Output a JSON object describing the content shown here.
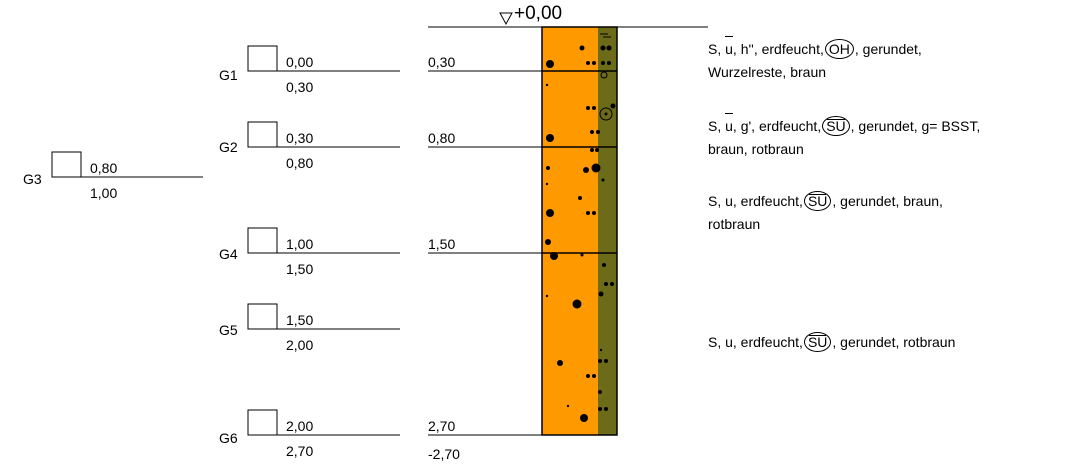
{
  "elevation_label": "+0,00",
  "samples": [
    {
      "id": "G1",
      "top": "0,00",
      "bottom": "0,30"
    },
    {
      "id": "G2",
      "top": "0,30",
      "bottom": "0,80"
    },
    {
      "id": "G3",
      "top": "0,80",
      "bottom": "1,00"
    },
    {
      "id": "G4",
      "top": "1,00",
      "bottom": "1,50"
    },
    {
      "id": "G5",
      "top": "1,50",
      "bottom": "2,00"
    },
    {
      "id": "G6",
      "top": "2,00",
      "bottom": "2,70"
    }
  ],
  "layer_depths": [
    "0,30",
    "0,80",
    "1,50",
    "2,70"
  ],
  "final_depth": "-2,70",
  "layers": [
    {
      "p1": "S, ",
      "p1_over": "u",
      "p2": ", h'', erdfeucht,",
      "code": "OH",
      "p3": ", gerundet,",
      "line2": "Wurzelreste, braun"
    },
    {
      "p1": "S, ",
      "p1_over": "u",
      "p2": ", g', erdfeucht,",
      "code": "SU",
      "p3": ", gerundet, g= BSST,",
      "line2": "braun, rotbraun"
    },
    {
      "p1": "S, u, erdfeucht,",
      "code": "SU",
      "p3": ", gerundet, braun,",
      "line2": "rotbraun"
    },
    {
      "p1": "S, u, erdfeucht,",
      "code": "SU",
      "p3": ", gerundet, rotbraun"
    }
  ],
  "colors": {
    "fill": "#ff9900",
    "stripe": "#6b6b1a",
    "line": "#000000"
  },
  "icons": {
    "water_level": "triangle-down-icon"
  }
}
